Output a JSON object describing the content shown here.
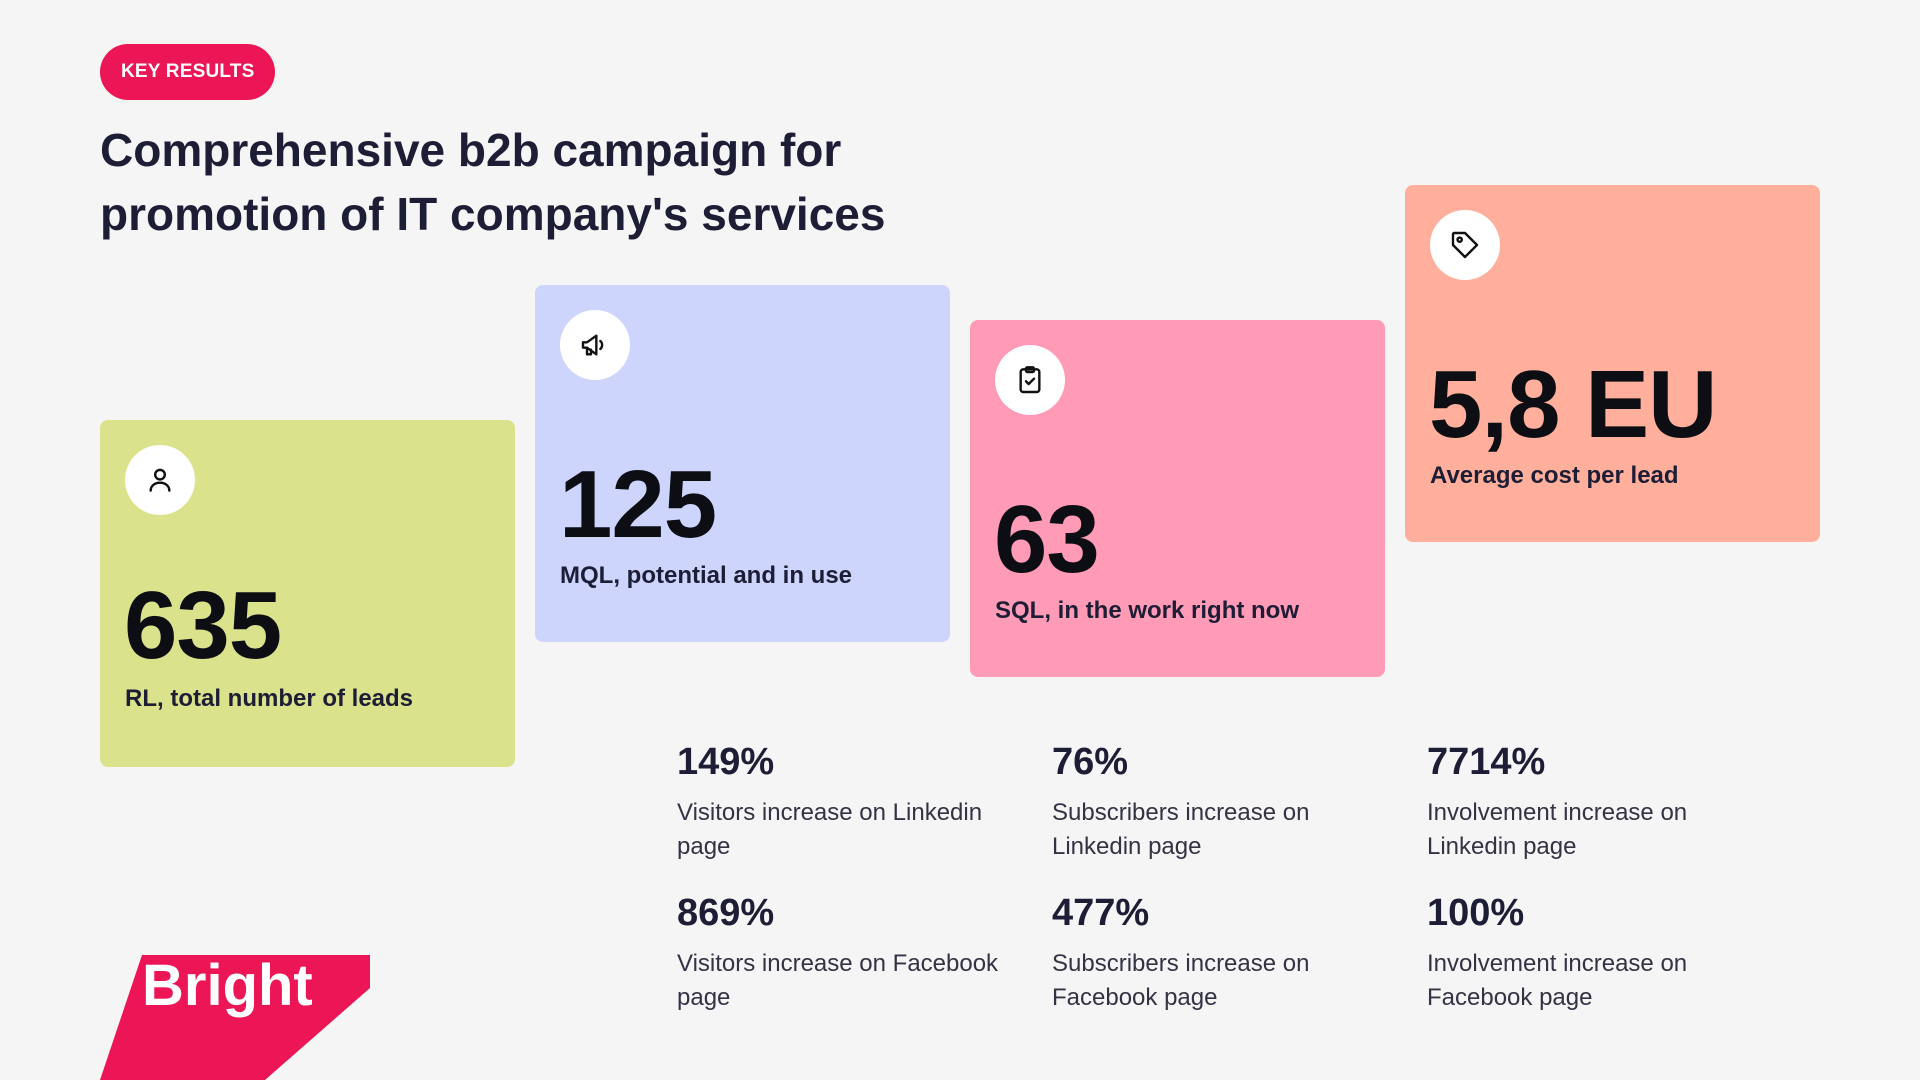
{
  "header": {
    "badge": "KEY RESULTS",
    "title_line1": "Comprehensive b2b campaign for",
    "title_line2": "promotion of IT company's services"
  },
  "cards": [
    {
      "icon": "user-icon",
      "value": "635",
      "label": "RL, total number of leads",
      "color": "#dae38b"
    },
    {
      "icon": "megaphone-icon",
      "value": "125",
      "label": "MQL, potential and in use",
      "color": "#cdd5fd"
    },
    {
      "icon": "clipboard-check-icon",
      "value": "63",
      "label": "SQL, in the work right now",
      "color": "#ff9ab7"
    },
    {
      "icon": "tag-icon",
      "value": "5,8 EU",
      "label": "Average cost per lead",
      "color": "#ffaf9b"
    }
  ],
  "stats": [
    {
      "value": "149%",
      "label": "Visitors increase on Linkedin page"
    },
    {
      "value": "76%",
      "label": "Subscribers increase on Linkedin page"
    },
    {
      "value": "7714%",
      "label": "Involvement increase on Linkedin page"
    },
    {
      "value": "869%",
      "label": "Visitors increase on Facebook page"
    },
    {
      "value": "477%",
      "label": "Subscribers increase on Facebook page"
    },
    {
      "value": "100%",
      "label": "Involvement increase on Facebook page"
    }
  ],
  "logo": {
    "text": "Bright",
    "color": "#ec1656"
  },
  "colors": {
    "accent": "#ec1656",
    "text": "#1d1d35",
    "background": "#f5f5f5"
  }
}
